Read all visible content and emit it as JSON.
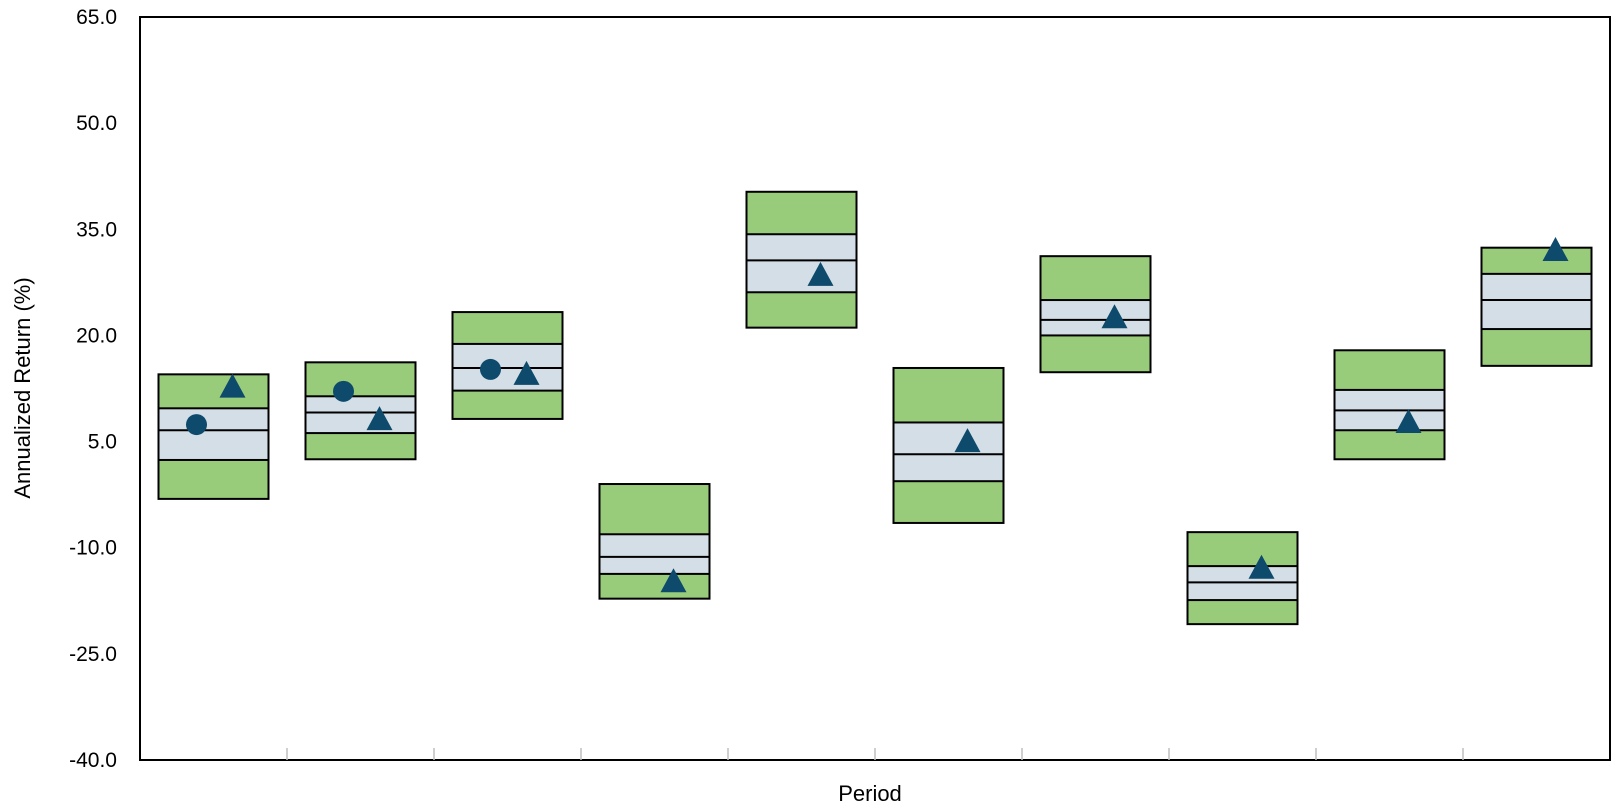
{
  "chart_data": {
    "type": "floating-bar-percentile",
    "title": "",
    "xlabel": "Period",
    "ylabel": "Annualized Return (%)",
    "ylim": [
      -40.0,
      65.0
    ],
    "yticks": [
      "65.0",
      "50.0",
      "35.0",
      "20.0",
      "5.0",
      "-10.0",
      "-25.0",
      "-40.0"
    ],
    "ytick_values": [
      65,
      50,
      35,
      20,
      5,
      -10,
      -25,
      -40
    ],
    "categories": [
      "",
      "",
      "",
      "",
      "",
      "",
      "",
      "",
      "",
      ""
    ],
    "percentiles": [
      {
        "p95": 14.5,
        "p75": 9.7,
        "p50": 6.6,
        "p25": 2.4,
        "p5": -3.1
      },
      {
        "p95": 16.2,
        "p75": 11.4,
        "p50": 9.1,
        "p25": 6.2,
        "p5": 2.5
      },
      {
        "p95": 23.3,
        "p75": 18.8,
        "p50": 15.4,
        "p25": 12.2,
        "p5": 8.2
      },
      {
        "p95": -1.0,
        "p75": -8.1,
        "p50": -11.3,
        "p25": -13.7,
        "p5": -17.2
      },
      {
        "p95": 40.3,
        "p75": 34.3,
        "p50": 30.6,
        "p25": 26.1,
        "p5": 21.1
      },
      {
        "p95": 15.4,
        "p75": 7.7,
        "p50": 3.2,
        "p25": -0.6,
        "p5": -6.5
      },
      {
        "p95": 31.2,
        "p75": 25.0,
        "p50": 22.2,
        "p25": 20.0,
        "p5": 14.8
      },
      {
        "p95": -7.8,
        "p75": -12.6,
        "p50": -14.9,
        "p25": -17.4,
        "p5": -20.8
      },
      {
        "p95": 17.9,
        "p75": 12.3,
        "p50": 9.4,
        "p25": 6.6,
        "p5": 2.5
      },
      {
        "p95": 32.4,
        "p75": 28.7,
        "p50": 25.0,
        "p25": 20.9,
        "p5": 15.7
      }
    ],
    "series": [
      {
        "marker": "circle",
        "values": [
          7.4,
          12.1,
          15.2,
          null,
          null,
          null,
          null,
          null,
          null,
          null
        ]
      },
      {
        "marker": "triangle",
        "values": [
          12.5,
          7.9,
          14.3,
          -15.0,
          28.3,
          4.8,
          22.3,
          -13.1,
          7.5,
          31.8
        ]
      }
    ],
    "colors": {
      "outer_band": "#99cc7a",
      "inner_band": "#d3dee6",
      "marker": "#0d4a6b",
      "border": "#000000"
    },
    "grid": false,
    "legend": "none"
  }
}
